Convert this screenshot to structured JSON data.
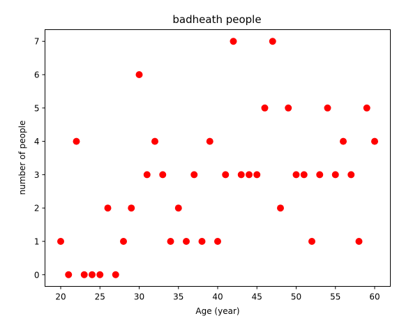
{
  "chart_data": {
    "type": "scatter",
    "title": "badheath people",
    "xlabel": "Age (year)",
    "ylabel": "number of people",
    "xlim": [
      18,
      62
    ],
    "ylim": [
      -0.35,
      7.35
    ],
    "xticks": [
      20,
      25,
      30,
      35,
      40,
      45,
      50,
      55,
      60
    ],
    "yticks": [
      0,
      1,
      2,
      3,
      4,
      5,
      6,
      7
    ],
    "grid": false,
    "marker_color": "#ff0000",
    "series": [
      {
        "x": [
          20,
          21,
          22,
          23,
          24,
          25,
          26,
          27,
          28,
          29,
          30,
          31,
          32,
          33,
          34,
          35,
          36,
          37,
          38,
          39,
          40,
          41,
          42,
          43,
          44,
          45,
          46,
          47,
          48,
          49,
          50,
          51,
          52,
          53,
          54,
          55,
          56,
          57,
          58,
          59,
          60
        ],
        "y": [
          1,
          0,
          4,
          0,
          0,
          0,
          2,
          0,
          1,
          2,
          6,
          3,
          4,
          3,
          1,
          2,
          1,
          3,
          1,
          4,
          1,
          3,
          7,
          3,
          3,
          3,
          5,
          7,
          2,
          5,
          3,
          3,
          1,
          3,
          5,
          3,
          4,
          3,
          1,
          5,
          4
        ]
      }
    ]
  }
}
